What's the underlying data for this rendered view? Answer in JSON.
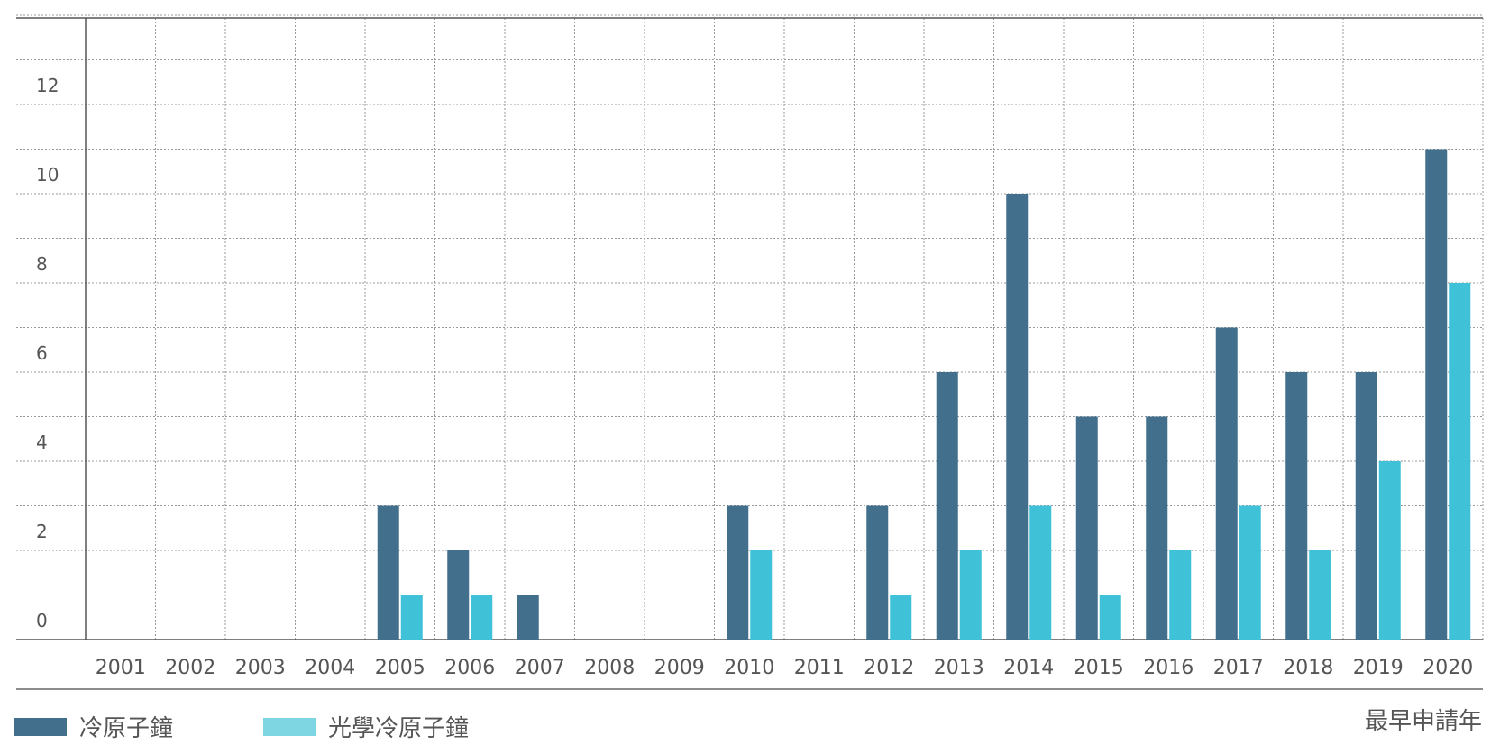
{
  "chart_data": {
    "type": "bar",
    "categories": [
      "2001",
      "2002",
      "2003",
      "2004",
      "2005",
      "2006",
      "2007",
      "2008",
      "2009",
      "2010",
      "2011",
      "2012",
      "2013",
      "2014",
      "2015",
      "2016",
      "2017",
      "2018",
      "2019",
      "2020"
    ],
    "series": [
      {
        "name": "冷原子鐘",
        "color": "#426f8c",
        "values": [
          0,
          0,
          0,
          0,
          3,
          2,
          1,
          0,
          0,
          3,
          0,
          3,
          6,
          10,
          5,
          5,
          7,
          6,
          6,
          11
        ]
      },
      {
        "name": "光學冷原子鐘",
        "color": "#3fc2d7",
        "values": [
          0,
          0,
          0,
          0,
          1,
          1,
          0,
          0,
          0,
          2,
          0,
          1,
          2,
          3,
          1,
          2,
          3,
          2,
          4,
          8
        ]
      }
    ],
    "xlabel": "最早申請年",
    "ylim": [
      0,
      14
    ],
    "yticks": [
      "0",
      "2",
      "4",
      "6",
      "8",
      "10",
      "12"
    ],
    "grid": true,
    "legend_position": "bottom-left",
    "legend_swatch_colors": [
      "#426f8c",
      "#7fd6e3"
    ]
  }
}
